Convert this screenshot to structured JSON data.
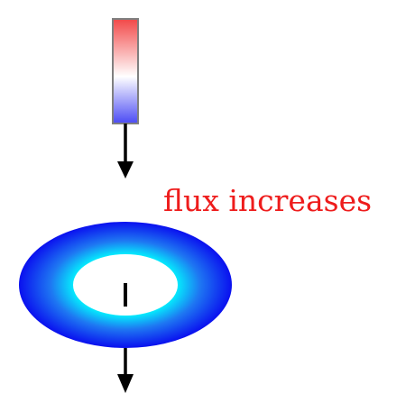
{
  "label": {
    "text": "flux increases",
    "color": "#ee1c1c"
  },
  "magnet": {
    "colors": {
      "top": "#f24848",
      "middle": "#ffffff",
      "bottom": "#4a4af4",
      "border": "#7f7f7f"
    }
  },
  "loop": {
    "colors": {
      "outer": "#0a10ef",
      "mid": "#1e78f2",
      "inner": "#00ffff",
      "center": "#ffffff"
    }
  },
  "arrows": {
    "color": "#000000"
  }
}
